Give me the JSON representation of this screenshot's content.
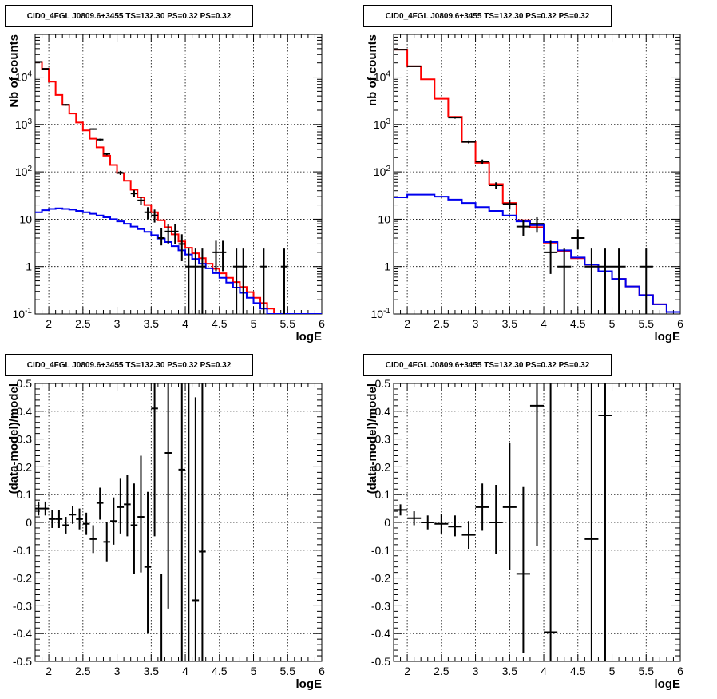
{
  "pads": [
    {
      "id": "top-left",
      "title": "CID0_4FGL J0809.6+3455 TS=132.30 PS=0.32 PS=0.32",
      "xlabel": "logE",
      "ylabel": "Nb of counts"
    },
    {
      "id": "top-right",
      "title": "CID0_4FGL J0809.6+3455 TS=132.30 PS=0.32 PS=0.32",
      "xlabel": "logE",
      "ylabel": "nb of counts"
    },
    {
      "id": "bottom-left",
      "title": "CID0_4FGL J0809.6+3455 TS=132.30 PS=0.32 PS=0.32",
      "xlabel": "logE",
      "ylabel": "(data-model)/model"
    },
    {
      "id": "bottom-right",
      "title": "CID0_4FGL J0809.6+3455 TS=132.30 PS=0.32 PS=0.32",
      "xlabel": "logE",
      "ylabel": "(data-model)/model"
    }
  ],
  "chart_data": [
    {
      "type": "line",
      "title": "CID0_4FGL J0809.6+3455 TS=132.30 PS=0.32 PS=0.32",
      "xlabel": "logE",
      "ylabel": "Nb of counts",
      "xlim": [
        1.8,
        6.0
      ],
      "ylim": [
        0.1,
        80000
      ],
      "yscale": "log",
      "grid": true,
      "xticks": [
        "2",
        "2.5",
        "3",
        "3.5",
        "4",
        "4.5",
        "5",
        "5.5",
        "6"
      ],
      "yticks": [
        "10^-1",
        "1",
        "10",
        "10^2",
        "10^3",
        "10^4"
      ],
      "series": [
        {
          "color": "#ff0000",
          "draw": "step",
          "edges": [
            1.8,
            1.9,
            2.0,
            2.1,
            2.2,
            2.3,
            2.4,
            2.5,
            2.6,
            2.7,
            2.8,
            2.9,
            3.0,
            3.1,
            3.2,
            3.3,
            3.4,
            3.5,
            3.6,
            3.7,
            3.8,
            3.9,
            4.0,
            4.1,
            4.2,
            4.3,
            4.4,
            4.5,
            4.6,
            4.7,
            4.8,
            4.9,
            5.0,
            5.1,
            5.2,
            5.3,
            5.4,
            5.5,
            5.6,
            5.7,
            5.8,
            5.9,
            6.0
          ],
          "values": [
            21000,
            15000,
            8000,
            4200,
            2600,
            1700,
            1100,
            750,
            500,
            330,
            220,
            140,
            95,
            65,
            42,
            29,
            20,
            14,
            9.5,
            6.8,
            4.8,
            3.4,
            2.5,
            1.9,
            1.5,
            1.15,
            0.9,
            0.72,
            0.58,
            0.47,
            0.37,
            0.29,
            0.22,
            0.17,
            0.13,
            0.1,
            0.1,
            0.1,
            0.1,
            0.1,
            0.1,
            0.1
          ]
        },
        {
          "color": "#0000ee",
          "draw": "step",
          "edges": [
            1.8,
            1.9,
            2.0,
            2.1,
            2.2,
            2.3,
            2.4,
            2.5,
            2.6,
            2.7,
            2.8,
            2.9,
            3.0,
            3.1,
            3.2,
            3.3,
            3.4,
            3.5,
            3.6,
            3.7,
            3.8,
            3.9,
            4.0,
            4.1,
            4.2,
            4.3,
            4.4,
            4.5,
            4.6,
            4.7,
            4.8,
            4.9,
            5.0,
            5.1,
            5.2,
            5.3,
            5.4,
            5.5,
            5.6,
            5.7,
            5.8,
            5.9,
            6.0
          ],
          "values": [
            14,
            15.5,
            16.5,
            17,
            16.5,
            16,
            15,
            14,
            13,
            12,
            11,
            10,
            9,
            8,
            7,
            6.2,
            5.4,
            4.6,
            3.9,
            3.3,
            2.7,
            2.2,
            1.8,
            1.45,
            1.15,
            0.92,
            0.73,
            0.58,
            0.46,
            0.36,
            0.28,
            0.22,
            0.17,
            0.13,
            0.1,
            0.1,
            0.1,
            0.1,
            0.1,
            0.1,
            0.1,
            0.1
          ]
        }
      ],
      "points": [
        {
          "x": 1.85,
          "y": 21000,
          "xerr": 0.05,
          "ylo": 20700,
          "yhi": 21300
        },
        {
          "x": 1.95,
          "y": 15000,
          "xerr": 0.05,
          "ylo": 14750,
          "yhi": 15250
        },
        {
          "x": 2.25,
          "y": 2600,
          "xerr": 0.05,
          "ylo": 2500,
          "yhi": 2700
        },
        {
          "x": 2.65,
          "y": 800,
          "xerr": 0.05,
          "ylo": 770,
          "yhi": 830
        },
        {
          "x": 2.75,
          "y": 480,
          "xerr": 0.05,
          "ylo": 460,
          "yhi": 500
        },
        {
          "x": 2.85,
          "y": 240,
          "xerr": 0.05,
          "ylo": 225,
          "yhi": 255
        },
        {
          "x": 3.05,
          "y": 95,
          "xerr": 0.05,
          "ylo": 86,
          "yhi": 105
        },
        {
          "x": 3.25,
          "y": 35,
          "xerr": 0.05,
          "ylo": 29,
          "yhi": 41
        },
        {
          "x": 3.35,
          "y": 25,
          "xerr": 0.05,
          "ylo": 20,
          "yhi": 30
        },
        {
          "x": 3.45,
          "y": 14,
          "xerr": 0.05,
          "ylo": 10,
          "yhi": 18
        },
        {
          "x": 3.55,
          "y": 12,
          "xerr": 0.05,
          "ylo": 8.5,
          "yhi": 16
        },
        {
          "x": 3.65,
          "y": 4,
          "xerr": 0.05,
          "ylo": 2.8,
          "yhi": 6.5
        },
        {
          "x": 3.75,
          "y": 5.5,
          "xerr": 0.05,
          "ylo": 3,
          "yhi": 8
        },
        {
          "x": 3.85,
          "y": 5.5,
          "xerr": 0.05,
          "ylo": 3,
          "yhi": 8
        },
        {
          "x": 3.95,
          "y": 3,
          "xerr": 0.05,
          "ylo": 1.3,
          "yhi": 4.8
        },
        {
          "x": 4.05,
          "y": 1,
          "xerr": 0.05,
          "ylo": 0.1,
          "yhi": 2.4
        },
        {
          "x": 4.15,
          "y": 1,
          "xerr": 0.05,
          "ylo": 0.1,
          "yhi": 2.4
        },
        {
          "x": 4.25,
          "y": 1,
          "xerr": 0.05,
          "ylo": 0.1,
          "yhi": 2.4
        },
        {
          "x": 4.45,
          "y": 2,
          "xerr": 0.05,
          "ylo": 0.8,
          "yhi": 3.5
        },
        {
          "x": 4.55,
          "y": 2,
          "xerr": 0.05,
          "ylo": 0.8,
          "yhi": 3.5
        },
        {
          "x": 4.75,
          "y": 1,
          "xerr": 0.05,
          "ylo": 0.1,
          "yhi": 2.4
        },
        {
          "x": 4.85,
          "y": 1,
          "xerr": 0.05,
          "ylo": 0.1,
          "yhi": 2.4
        },
        {
          "x": 5.15,
          "y": 1,
          "xerr": 0.05,
          "ylo": 0.1,
          "yhi": 2.4
        },
        {
          "x": 5.45,
          "y": 1,
          "xerr": 0.05,
          "ylo": 0.1,
          "yhi": 2.4
        }
      ]
    },
    {
      "type": "line",
      "title": "CID0_4FGL J0809.6+3455 TS=132.30 PS=0.32 PS=0.32",
      "xlabel": "logE",
      "ylabel": "nb of counts",
      "xlim": [
        1.8,
        6.0
      ],
      "ylim": [
        0.1,
        80000
      ],
      "yscale": "log",
      "grid": true,
      "xticks": [
        "2",
        "2.5",
        "3",
        "3.5",
        "4",
        "4.5",
        "5",
        "5.5",
        "6"
      ],
      "yticks": [
        "10^-1",
        "1",
        "10",
        "10^2",
        "10^3",
        "10^4"
      ],
      "series": [
        {
          "color": "#ff0000",
          "draw": "step",
          "edges": [
            1.8,
            2.0,
            2.2,
            2.4,
            2.6,
            2.8,
            3.0,
            3.2,
            3.4,
            3.6,
            3.8,
            4.0,
            4.2,
            4.4,
            4.6,
            4.8,
            5.0,
            5.2,
            5.4,
            5.6,
            5.8,
            6.0
          ],
          "values": [
            38000,
            17000,
            9000,
            3500,
            1450,
            430,
            155,
            55,
            22,
            9.5,
            6.8,
            3.2,
            2.1,
            1.5,
            1.1,
            0.8,
            0.55,
            0.38,
            0.25,
            0.16,
            0.11
          ],
          "edges_note": ""
        },
        {
          "color": "#0000ee",
          "draw": "step",
          "edges": [
            1.8,
            2.0,
            2.2,
            2.4,
            2.6,
            2.8,
            3.0,
            3.2,
            3.4,
            3.6,
            3.8,
            4.0,
            4.2,
            4.4,
            4.6,
            4.8,
            5.0,
            5.2,
            5.4,
            5.6,
            5.8,
            6.0
          ],
          "values": [
            29,
            33,
            33,
            30,
            26,
            22,
            18,
            15,
            12,
            9,
            7.5,
            3.3,
            2.2,
            1.55,
            1.1,
            0.8,
            0.55,
            0.38,
            0.25,
            0.16,
            0.11
          ]
        }
      ],
      "points": [
        {
          "x": 1.9,
          "y": 38000,
          "xerr": 0.1,
          "ylo": 37600,
          "yhi": 38400
        },
        {
          "x": 2.1,
          "y": 17000,
          "xerr": 0.1,
          "ylo": 16700,
          "yhi": 17300
        },
        {
          "x": 2.7,
          "y": 1400,
          "xerr": 0.1,
          "ylo": 1330,
          "yhi": 1470
        },
        {
          "x": 2.9,
          "y": 430,
          "xerr": 0.1,
          "ylo": 400,
          "yhi": 460
        },
        {
          "x": 3.1,
          "y": 165,
          "xerr": 0.1,
          "ylo": 148,
          "yhi": 182
        },
        {
          "x": 3.3,
          "y": 52,
          "xerr": 0.1,
          "ylo": 44,
          "yhi": 60
        },
        {
          "x": 3.5,
          "y": 21,
          "xerr": 0.1,
          "ylo": 16,
          "yhi": 26
        },
        {
          "x": 3.7,
          "y": 7,
          "xerr": 0.1,
          "ylo": 4.5,
          "yhi": 9.5
        },
        {
          "x": 3.9,
          "y": 8,
          "xerr": 0.1,
          "ylo": 5.2,
          "yhi": 11
        },
        {
          "x": 4.1,
          "y": 2,
          "xerr": 0.1,
          "ylo": 0.7,
          "yhi": 3.5
        },
        {
          "x": 4.3,
          "y": 1,
          "xerr": 0.1,
          "ylo": 0.1,
          "yhi": 2.4
        },
        {
          "x": 4.5,
          "y": 4,
          "xerr": 0.1,
          "ylo": 2.3,
          "yhi": 6
        },
        {
          "x": 4.7,
          "y": 1,
          "xerr": 0.1,
          "ylo": 0.1,
          "yhi": 2.4
        },
        {
          "x": 4.9,
          "y": 1,
          "xerr": 0.1,
          "ylo": 0.1,
          "yhi": 2.4
        },
        {
          "x": 5.1,
          "y": 1,
          "xerr": 0.1,
          "ylo": 0.1,
          "yhi": 2.4
        },
        {
          "x": 5.5,
          "y": 1,
          "xerr": 0.1,
          "ylo": 0.1,
          "yhi": 2.4
        }
      ]
    },
    {
      "type": "scatter",
      "title": "CID0_4FGL J0809.6+3455 TS=132.30 PS=0.32 PS=0.32",
      "xlabel": "logE",
      "ylabel": "(data-model)/model",
      "xlim": [
        1.8,
        6.0
      ],
      "ylim": [
        -0.5,
        0.5
      ],
      "yscale": "linear",
      "grid": true,
      "xticks": [
        "2",
        "2.5",
        "3",
        "3.5",
        "4",
        "4.5",
        "5",
        "5.5",
        "6"
      ],
      "yticks": [
        "-0.5",
        "-0.4",
        "-0.3",
        "-0.2",
        "-0.1",
        "0",
        "0.1",
        "0.2",
        "0.3",
        "0.4",
        "0.5"
      ],
      "points": [
        {
          "x": 1.85,
          "y": 0.05,
          "xerr": 0.05,
          "ylo": 0.025,
          "yhi": 0.075
        },
        {
          "x": 1.95,
          "y": 0.05,
          "xerr": 0.05,
          "ylo": 0.025,
          "yhi": 0.075
        },
        {
          "x": 2.05,
          "y": 0.012,
          "xerr": 0.05,
          "ylo": -0.02,
          "yhi": 0.045
        },
        {
          "x": 2.15,
          "y": 0.012,
          "xerr": 0.05,
          "ylo": -0.02,
          "yhi": 0.045
        },
        {
          "x": 2.25,
          "y": -0.01,
          "xerr": 0.05,
          "ylo": -0.04,
          "yhi": 0.02
        },
        {
          "x": 2.35,
          "y": 0.028,
          "xerr": 0.05,
          "ylo": -0.005,
          "yhi": 0.06
        },
        {
          "x": 2.45,
          "y": 0.012,
          "xerr": 0.05,
          "ylo": -0.025,
          "yhi": 0.05
        },
        {
          "x": 2.55,
          "y": -0.005,
          "xerr": 0.05,
          "ylo": -0.045,
          "yhi": 0.035
        },
        {
          "x": 2.65,
          "y": -0.06,
          "xerr": 0.05,
          "ylo": -0.11,
          "yhi": -0.01
        },
        {
          "x": 2.75,
          "y": 0.07,
          "xerr": 0.05,
          "ylo": 0.01,
          "yhi": 0.125
        },
        {
          "x": 2.85,
          "y": -0.07,
          "xerr": 0.05,
          "ylo": -0.14,
          "yhi": 0.0
        },
        {
          "x": 2.95,
          "y": 0.005,
          "xerr": 0.05,
          "ylo": -0.08,
          "yhi": 0.09
        },
        {
          "x": 3.05,
          "y": 0.055,
          "xerr": 0.05,
          "ylo": -0.04,
          "yhi": 0.16
        },
        {
          "x": 3.15,
          "y": 0.065,
          "xerr": 0.05,
          "ylo": -0.05,
          "yhi": 0.17
        },
        {
          "x": 3.25,
          "y": -0.01,
          "xerr": 0.05,
          "ylo": -0.185,
          "yhi": 0.14
        },
        {
          "x": 3.35,
          "y": 0.02,
          "xerr": 0.05,
          "ylo": -0.18,
          "yhi": 0.24
        },
        {
          "x": 3.45,
          "y": -0.16,
          "xerr": 0.05,
          "ylo": -0.4,
          "yhi": 0.11
        },
        {
          "x": 3.55,
          "y": 0.41,
          "xerr": 0.05,
          "ylo": -0.05,
          "yhi": 0.5
        },
        {
          "x": 3.65,
          "y": -0.5,
          "xerr": 0.05,
          "ylo": -0.5,
          "yhi": -0.185
        },
        {
          "x": 3.75,
          "y": 0.25,
          "xerr": 0.05,
          "ylo": -0.31,
          "yhi": 0.5
        },
        {
          "x": 3.95,
          "y": 0.19,
          "xerr": 0.05,
          "ylo": -0.5,
          "yhi": 0.5
        },
        {
          "x": 4.05,
          "y": -0.5,
          "xerr": 0.05,
          "ylo": -0.5,
          "yhi": 0.5
        },
        {
          "x": 4.15,
          "y": -0.28,
          "xerr": 0.05,
          "ylo": -0.5,
          "yhi": 0.45
        },
        {
          "x": 4.25,
          "y": -0.105,
          "xerr": 0.05,
          "ylo": -0.5,
          "yhi": 0.5
        }
      ]
    },
    {
      "type": "scatter",
      "title": "CID0_4FGL J0809.6+3455 TS=132.30 PS=0.32 PS=0.32",
      "xlabel": "logE",
      "ylabel": "(data-model)/model",
      "xlim": [
        1.8,
        6.0
      ],
      "ylim": [
        -0.5,
        0.5
      ],
      "yscale": "linear",
      "grid": true,
      "xticks": [
        "2",
        "2.5",
        "3",
        "3.5",
        "4",
        "4.5",
        "5",
        "5.5",
        "6"
      ],
      "yticks": [
        "-0.5",
        "-0.4",
        "-0.3",
        "-0.2",
        "-0.1",
        "0",
        "0.1",
        "0.2",
        "0.3",
        "0.4",
        "0.5"
      ],
      "points": [
        {
          "x": 1.9,
          "y": 0.045,
          "xerr": 0.1,
          "ylo": 0.025,
          "yhi": 0.065
        },
        {
          "x": 2.1,
          "y": 0.015,
          "xerr": 0.1,
          "ylo": -0.01,
          "yhi": 0.04
        },
        {
          "x": 2.3,
          "y": 0.0,
          "xerr": 0.1,
          "ylo": -0.025,
          "yhi": 0.025
        },
        {
          "x": 2.5,
          "y": -0.005,
          "xerr": 0.1,
          "ylo": -0.04,
          "yhi": 0.03
        },
        {
          "x": 2.7,
          "y": -0.015,
          "xerr": 0.1,
          "ylo": -0.05,
          "yhi": 0.025
        },
        {
          "x": 2.9,
          "y": -0.045,
          "xerr": 0.1,
          "ylo": -0.095,
          "yhi": 0.005
        },
        {
          "x": 3.1,
          "y": 0.055,
          "xerr": 0.1,
          "ylo": -0.03,
          "yhi": 0.14
        },
        {
          "x": 3.3,
          "y": 0.0,
          "xerr": 0.1,
          "ylo": -0.115,
          "yhi": 0.135
        },
        {
          "x": 3.5,
          "y": 0.055,
          "xerr": 0.1,
          "ylo": -0.17,
          "yhi": 0.285
        },
        {
          "x": 3.7,
          "y": -0.185,
          "xerr": 0.1,
          "ylo": -0.47,
          "yhi": 0.13
        },
        {
          "x": 3.9,
          "y": 0.42,
          "xerr": 0.1,
          "ylo": -0.085,
          "yhi": 0.5
        },
        {
          "x": 4.1,
          "y": -0.395,
          "xerr": 0.1,
          "ylo": -0.5,
          "yhi": 0.5
        },
        {
          "x": 4.7,
          "y": -0.06,
          "xerr": 0.1,
          "ylo": -0.5,
          "yhi": 0.5
        },
        {
          "x": 4.9,
          "y": 0.385,
          "xerr": 0.1,
          "ylo": -0.5,
          "yhi": 0.5
        }
      ]
    }
  ]
}
